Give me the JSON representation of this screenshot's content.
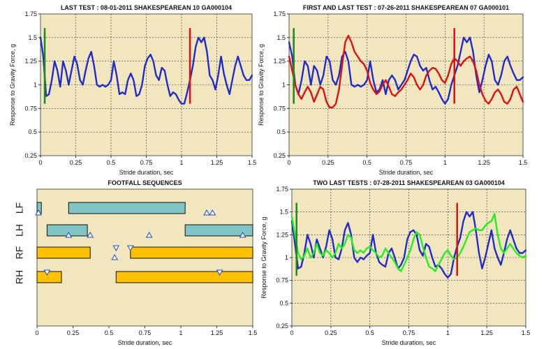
{
  "chart_data": [
    {
      "type": "line",
      "title": "LAST TEST : 08-01-2011 SHAKESPEAREAN 10 GA000104",
      "xlabel": "Stride duration, sec",
      "ylabel": "Response to Gravity Force, g",
      "xlim": [
        0,
        1.5
      ],
      "ylim": [
        0.25,
        1.75
      ],
      "xticks": [
        "0",
        "0.25",
        "0.5",
        "0.75",
        "1",
        "1.25",
        "1.5"
      ],
      "yticks": [
        "0.25",
        "0.5",
        "0.75",
        "1",
        "1.25",
        "1.5",
        "1.75"
      ],
      "grid": true,
      "series": [
        {
          "color": "#1f2bcc",
          "x": [
            0,
            0.02,
            0.04,
            0.06,
            0.08,
            0.1,
            0.12,
            0.14,
            0.16,
            0.18,
            0.2,
            0.22,
            0.24,
            0.26,
            0.28,
            0.3,
            0.32,
            0.34,
            0.36,
            0.38,
            0.4,
            0.42,
            0.44,
            0.46,
            0.48,
            0.5,
            0.52,
            0.54,
            0.56,
            0.58,
            0.6,
            0.62,
            0.64,
            0.66,
            0.68,
            0.7,
            0.72,
            0.74,
            0.76,
            0.78,
            0.8,
            0.82,
            0.84,
            0.86,
            0.88,
            0.9,
            0.92,
            0.94,
            0.96,
            0.98,
            1.0,
            1.02,
            1.04,
            1.06,
            1.08,
            1.1,
            1.12,
            1.14,
            1.16,
            1.18,
            1.2,
            1.22,
            1.24,
            1.26,
            1.28,
            1.3,
            1.32,
            1.34,
            1.36,
            1.38,
            1.4,
            1.42,
            1.44,
            1.46,
            1.48,
            1.5
          ],
          "y": [
            1.5,
            1.3,
            0.88,
            0.9,
            1.05,
            1.25,
            1.15,
            0.98,
            1.25,
            1.15,
            1.0,
            1.15,
            1.3,
            1.22,
            1.05,
            1.0,
            1.15,
            1.28,
            1.35,
            1.2,
            1.0,
            0.98,
            1.0,
            0.98,
            1.0,
            1.05,
            1.25,
            1.1,
            0.9,
            0.92,
            0.9,
            1.05,
            1.12,
            1.05,
            0.88,
            0.9,
            1.0,
            1.2,
            1.28,
            1.32,
            1.25,
            1.1,
            1.05,
            1.18,
            1.15,
            1.0,
            0.88,
            0.92,
            0.9,
            0.84,
            0.8,
            0.8,
            0.92,
            1.05,
            1.2,
            1.4,
            1.5,
            1.45,
            1.5,
            1.35,
            1.1,
            1.05,
            0.95,
            1.1,
            1.3,
            1.12,
            1.0,
            0.9,
            1.05,
            1.2,
            1.3,
            1.2,
            1.1,
            1.05,
            1.05,
            1.1
          ]
        }
      ],
      "markers": [
        {
          "color": "#1a8a1a",
          "x": 0.03,
          "y1": 0.8,
          "y2": 1.6
        },
        {
          "color": "#dd1111",
          "x": 1.06,
          "y1": 0.8,
          "y2": 1.6
        }
      ]
    },
    {
      "type": "line",
      "title": "FIRST AND LAST TEST : 07-26-2011 SHAKESPEAREAN 07 GA000101",
      "xlabel": "Stride duration, sec",
      "ylabel": "Response to Gravity Force, g",
      "xlim": [
        0,
        1.5
      ],
      "ylim": [
        0.25,
        1.75
      ],
      "xticks": [
        "0",
        "0.25",
        "0.5",
        "0.75",
        "1",
        "1.25",
        "1.5"
      ],
      "yticks": [
        "0.25",
        "0.5",
        "0.75",
        "1",
        "1.25",
        "1.5",
        "1.75"
      ],
      "grid": true,
      "series": [
        {
          "color": "#1f2bcc",
          "x": [
            0,
            0.02,
            0.04,
            0.06,
            0.08,
            0.1,
            0.12,
            0.14,
            0.16,
            0.18,
            0.2,
            0.22,
            0.24,
            0.26,
            0.28,
            0.3,
            0.32,
            0.34,
            0.36,
            0.38,
            0.4,
            0.42,
            0.44,
            0.46,
            0.48,
            0.5,
            0.52,
            0.54,
            0.56,
            0.58,
            0.6,
            0.62,
            0.64,
            0.66,
            0.68,
            0.7,
            0.72,
            0.74,
            0.76,
            0.78,
            0.8,
            0.82,
            0.84,
            0.86,
            0.88,
            0.9,
            0.92,
            0.94,
            0.96,
            0.98,
            1.0,
            1.02,
            1.04,
            1.06,
            1.08,
            1.1,
            1.12,
            1.14,
            1.16,
            1.18,
            1.2,
            1.22,
            1.24,
            1.26,
            1.28,
            1.3,
            1.32,
            1.34,
            1.36,
            1.38,
            1.4,
            1.42,
            1.44,
            1.46,
            1.48,
            1.5
          ],
          "y": [
            1.45,
            1.3,
            1.0,
            0.9,
            1.05,
            1.25,
            1.2,
            1.0,
            1.2,
            1.15,
            1.0,
            1.1,
            1.3,
            1.25,
            1.05,
            1.0,
            1.1,
            1.3,
            1.35,
            1.25,
            1.0,
            0.98,
            1.0,
            0.98,
            1.0,
            1.05,
            1.25,
            1.05,
            0.92,
            0.95,
            1.05,
            0.9,
            1.05,
            1.1,
            1.05,
            0.95,
            1.0,
            1.05,
            1.15,
            1.25,
            1.32,
            1.3,
            1.2,
            1.15,
            1.18,
            1.05,
            0.95,
            0.98,
            0.92,
            0.85,
            0.8,
            0.85,
            1.0,
            1.1,
            1.2,
            1.35,
            1.5,
            1.45,
            1.5,
            1.35,
            1.1,
            0.92,
            1.05,
            1.2,
            1.32,
            1.25,
            1.05,
            1.0,
            1.1,
            1.25,
            1.3,
            1.2,
            1.12,
            1.05,
            1.05,
            1.08
          ]
        },
        {
          "color": "#dd1111",
          "x": [
            0,
            0.02,
            0.04,
            0.06,
            0.08,
            0.1,
            0.12,
            0.14,
            0.16,
            0.18,
            0.2,
            0.22,
            0.24,
            0.26,
            0.28,
            0.3,
            0.32,
            0.34,
            0.36,
            0.38,
            0.4,
            0.42,
            0.44,
            0.46,
            0.48,
            0.5,
            0.52,
            0.54,
            0.56,
            0.58,
            0.6,
            0.62,
            0.64,
            0.66,
            0.68,
            0.7,
            0.72,
            0.74,
            0.76,
            0.78,
            0.8,
            0.82,
            0.84,
            0.86,
            0.88,
            0.9,
            0.92,
            0.94,
            0.96,
            0.98,
            1.0,
            1.02,
            1.04,
            1.06,
            1.08,
            1.1,
            1.12,
            1.14,
            1.16,
            1.18,
            1.2,
            1.22,
            1.24,
            1.26,
            1.28,
            1.3,
            1.32,
            1.34,
            1.36,
            1.38,
            1.4,
            1.42,
            1.44,
            1.46,
            1.48,
            1.5
          ],
          "y": [
            1.3,
            1.15,
            1.0,
            0.9,
            0.85,
            0.92,
            0.98,
            0.92,
            0.82,
            0.9,
            0.98,
            0.95,
            0.82,
            0.76,
            0.76,
            0.8,
            0.95,
            1.2,
            1.45,
            1.52,
            1.45,
            1.35,
            1.3,
            1.25,
            1.22,
            1.15,
            1.02,
            0.95,
            0.9,
            0.93,
            1.0,
            1.05,
            0.98,
            0.9,
            0.88,
            0.92,
            0.95,
            1.0,
            1.05,
            1.12,
            1.08,
            1.0,
            0.95,
            1.0,
            1.1,
            1.15,
            1.18,
            1.17,
            1.12,
            1.05,
            1.02,
            1.1,
            1.22,
            1.28,
            1.25,
            1.2,
            1.25,
            1.28,
            1.3,
            1.25,
            1.15,
            1.0,
            0.9,
            0.83,
            0.8,
            0.85,
            0.92,
            0.95,
            0.9,
            0.82,
            0.8,
            0.85,
            0.95,
            0.98,
            0.9,
            0.82
          ]
        }
      ],
      "markers": [
        {
          "color": "#1a8a1a",
          "x": 0.03,
          "y1": 0.8,
          "y2": 1.6
        },
        {
          "color": "#dd1111",
          "x": 1.06,
          "y1": 0.8,
          "y2": 1.6
        }
      ]
    },
    {
      "type": "bar",
      "title": "FOOTFALL SEQUENCES",
      "xlabel": "Stride duration, sec",
      "xlim": [
        0,
        1.5
      ],
      "xticks": [
        "0",
        "0.25",
        "0.5",
        "0.75",
        "1",
        "1.25",
        "1.5"
      ],
      "categories": [
        "LF",
        "LH",
        "RF",
        "RH"
      ],
      "legs": [
        {
          "label": "LF",
          "color": "#80c4c4",
          "segments": [
            [
              0.0,
              0.03
            ],
            [
              0.22,
              1.03
            ]
          ],
          "triangles": [
            {
              "x": 0.01,
              "dir": "up"
            },
            {
              "x": 1.18,
              "dir": "up"
            },
            {
              "x": 1.22,
              "dir": "up"
            }
          ]
        },
        {
          "label": "LH",
          "color": "#80c4c4",
          "segments": [
            [
              0.07,
              0.35
            ],
            [
              1.03,
              1.5
            ]
          ],
          "triangles": [
            {
              "x": 0.22,
              "dir": "up"
            },
            {
              "x": 0.37,
              "dir": "up"
            },
            {
              "x": 0.78,
              "dir": "up"
            },
            {
              "x": 1.43,
              "dir": "up"
            }
          ]
        },
        {
          "label": "RF",
          "color": "#ffc000",
          "segments": [
            [
              0.0,
              0.37
            ],
            [
              0.65,
              1.5
            ]
          ],
          "triangles": [
            {
              "x": 0.54,
              "dir": "up"
            },
            {
              "x": 0.55,
              "dir": "down"
            },
            {
              "x": 0.65,
              "dir": "down"
            }
          ]
        },
        {
          "label": "RH",
          "color": "#ffc000",
          "segments": [
            [
              0.0,
              0.17
            ],
            [
              0.55,
              1.5
            ]
          ],
          "triangles": [
            {
              "x": 0.07,
              "dir": "down"
            },
            {
              "x": 1.27,
              "dir": "down"
            }
          ]
        }
      ]
    },
    {
      "type": "line",
      "title": "TWO LAST TESTS : 07-28-2011 SHAKESPEAREAN 03 GA000104",
      "xlabel": "Stride duration, sec",
      "ylabel": "Response to Gravity Force, g",
      "xlim": [
        0,
        1.5
      ],
      "ylim": [
        0.25,
        1.75
      ],
      "xticks": [
        "0",
        "0.25",
        "0.5",
        "0.75",
        "1",
        "1.25",
        "1.5"
      ],
      "yticks": [
        "0.25",
        "0.5",
        "0.75",
        "1",
        "1.25",
        "1.5",
        "1.75"
      ],
      "grid": true,
      "series": [
        {
          "color": "#1f2bcc",
          "x": [
            0,
            0.02,
            0.04,
            0.06,
            0.08,
            0.1,
            0.12,
            0.14,
            0.16,
            0.18,
            0.2,
            0.22,
            0.24,
            0.26,
            0.28,
            0.3,
            0.32,
            0.34,
            0.36,
            0.38,
            0.4,
            0.42,
            0.44,
            0.46,
            0.48,
            0.5,
            0.52,
            0.54,
            0.56,
            0.58,
            0.6,
            0.62,
            0.64,
            0.66,
            0.68,
            0.7,
            0.72,
            0.74,
            0.76,
            0.78,
            0.8,
            0.82,
            0.84,
            0.86,
            0.88,
            0.9,
            0.92,
            0.94,
            0.96,
            0.98,
            1.0,
            1.02,
            1.04,
            1.06,
            1.08,
            1.1,
            1.12,
            1.14,
            1.16,
            1.18,
            1.2,
            1.22,
            1.24,
            1.26,
            1.28,
            1.3,
            1.32,
            1.34,
            1.36,
            1.38,
            1.4,
            1.42,
            1.44,
            1.46,
            1.48,
            1.5
          ],
          "y": [
            1.4,
            1.15,
            0.88,
            0.9,
            1.05,
            1.25,
            1.15,
            1.0,
            1.2,
            1.1,
            1.0,
            1.12,
            1.3,
            1.2,
            1.0,
            0.98,
            1.1,
            1.3,
            1.38,
            1.25,
            1.0,
            0.95,
            1.0,
            0.98,
            1.02,
            1.05,
            1.25,
            1.05,
            0.95,
            0.92,
            0.9,
            1.05,
            1.1,
            1.0,
            0.88,
            0.92,
            1.0,
            1.2,
            1.28,
            1.3,
            1.25,
            1.08,
            1.02,
            1.15,
            1.12,
            1.0,
            0.9,
            0.92,
            0.88,
            0.82,
            0.78,
            0.82,
            1.0,
            1.12,
            1.22,
            1.4,
            1.5,
            1.45,
            1.5,
            1.3,
            1.05,
            0.88,
            1.0,
            1.15,
            1.3,
            1.1,
            1.0,
            0.92,
            1.05,
            1.2,
            1.3,
            1.2,
            1.1,
            1.05,
            1.05,
            1.08
          ]
        },
        {
          "color": "#22ee22",
          "x": [
            0,
            0.02,
            0.04,
            0.06,
            0.08,
            0.1,
            0.12,
            0.14,
            0.16,
            0.18,
            0.2,
            0.22,
            0.24,
            0.26,
            0.28,
            0.3,
            0.32,
            0.34,
            0.36,
            0.38,
            0.4,
            0.42,
            0.44,
            0.46,
            0.48,
            0.5,
            0.52,
            0.54,
            0.56,
            0.58,
            0.6,
            0.62,
            0.64,
            0.66,
            0.68,
            0.7,
            0.72,
            0.74,
            0.76,
            0.78,
            0.8,
            0.82,
            0.84,
            0.86,
            0.88,
            0.9,
            0.92,
            0.94,
            0.96,
            0.98,
            1.0,
            1.02,
            1.04,
            1.06,
            1.08,
            1.1,
            1.12,
            1.14,
            1.16,
            1.18,
            1.2,
            1.22,
            1.24,
            1.26,
            1.28,
            1.3,
            1.32,
            1.34,
            1.36,
            1.38,
            1.4,
            1.42,
            1.44,
            1.46,
            1.48,
            1.5
          ],
          "y": [
            1.45,
            1.25,
            1.05,
            0.98,
            1.02,
            1.1,
            1.0,
            1.05,
            1.15,
            1.05,
            1.02,
            1.08,
            1.05,
            1.0,
            1.05,
            1.15,
            1.1,
            1.15,
            1.25,
            1.22,
            1.08,
            1.05,
            1.08,
            1.05,
            1.1,
            1.12,
            1.08,
            1.05,
            1.0,
            1.02,
            1.1,
            1.05,
            1.0,
            0.95,
            0.88,
            0.85,
            0.92,
            1.0,
            1.08,
            1.2,
            1.28,
            1.25,
            1.12,
            1.0,
            0.9,
            0.88,
            0.85,
            0.92,
            0.98,
            1.05,
            1.08,
            1.02,
            0.98,
            1.0,
            1.05,
            1.12,
            1.2,
            1.28,
            1.3,
            1.32,
            1.3,
            1.3,
            1.35,
            1.38,
            1.4,
            1.48,
            1.25,
            1.1,
            1.05,
            1.1,
            1.15,
            1.1,
            1.05,
            1.02,
            1.0,
            1.02
          ]
        }
      ],
      "markers": [
        {
          "color": "#1a8a1a",
          "x": 0.03,
          "y1": 0.8,
          "y2": 1.6
        },
        {
          "color": "#dd1111",
          "x": 1.06,
          "y1": 0.8,
          "y2": 1.6
        }
      ]
    }
  ]
}
